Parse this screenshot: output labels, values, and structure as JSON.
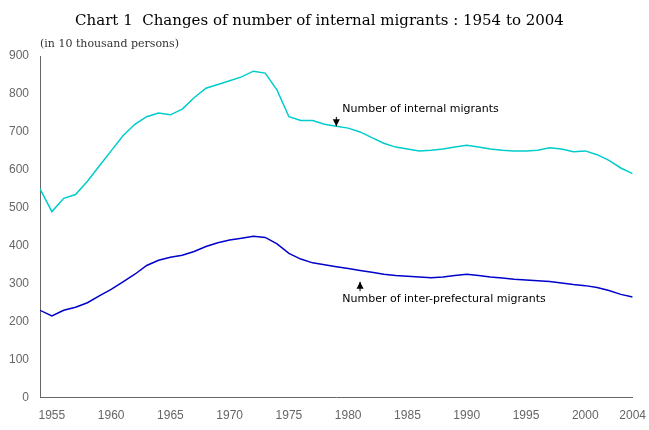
{
  "chart_data": {
    "type": "line",
    "title": "Chart 1  Changes of number of internal migrants : 1954 to 2004",
    "ylabel": "(in 10 thousand persons)",
    "x": [
      1954,
      1955,
      1956,
      1957,
      1958,
      1959,
      1960,
      1961,
      1962,
      1963,
      1964,
      1965,
      1966,
      1967,
      1968,
      1969,
      1970,
      1971,
      1972,
      1973,
      1974,
      1975,
      1976,
      1977,
      1978,
      1979,
      1980,
      1981,
      1982,
      1983,
      1984,
      1985,
      1986,
      1987,
      1988,
      1989,
      1990,
      1991,
      1992,
      1993,
      1994,
      1995,
      1996,
      1997,
      1998,
      1999,
      2000,
      2001,
      2002,
      2003,
      2004
    ],
    "series": [
      {
        "name": "Number of internal migrants",
        "color": "#00CCCC",
        "values": [
          550,
          490,
          525,
          535,
          570,
          610,
          650,
          690,
          720,
          740,
          750,
          745,
          760,
          790,
          815,
          825,
          835,
          845,
          860,
          855,
          810,
          740,
          730,
          730,
          720,
          715,
          710,
          700,
          685,
          670,
          660,
          655,
          650,
          652,
          655,
          660,
          665,
          660,
          655,
          652,
          650,
          650,
          652,
          658,
          655,
          648,
          650,
          640,
          625,
          605,
          590
        ]
      },
      {
        "name": "Number of inter-prefectural migrants",
        "color": "#0000CC",
        "values": [
          230,
          215,
          230,
          238,
          250,
          268,
          285,
          305,
          325,
          348,
          362,
          370,
          375,
          385,
          398,
          408,
          415,
          420,
          425,
          422,
          405,
          380,
          365,
          355,
          350,
          345,
          340,
          335,
          330,
          325,
          322,
          320,
          318,
          316,
          318,
          322,
          325,
          322,
          318,
          315,
          312,
          310,
          308,
          306,
          302,
          298,
          295,
          290,
          282,
          272,
          265
        ]
      }
    ],
    "annotations": [
      {
        "text": "Number of internal migrants",
        "x": 1979.5,
        "y": 745,
        "arrow_x": 1979,
        "arrow_y": 715
      },
      {
        "text": "Number of inter-prefectural migrants",
        "x": 1979.5,
        "y": 275,
        "arrow_x": 1981,
        "arrow_y": 305
      }
    ],
    "xlim": [
      1954,
      2004
    ],
    "xticks": [
      1955,
      1960,
      1965,
      1970,
      1975,
      1980,
      1985,
      1990,
      1995,
      2000,
      2004
    ],
    "ylim": [
      0,
      900
    ],
    "yticks": [
      0,
      100,
      200,
      300,
      400,
      500,
      600,
      700,
      800,
      900
    ],
    "grid": false
  }
}
